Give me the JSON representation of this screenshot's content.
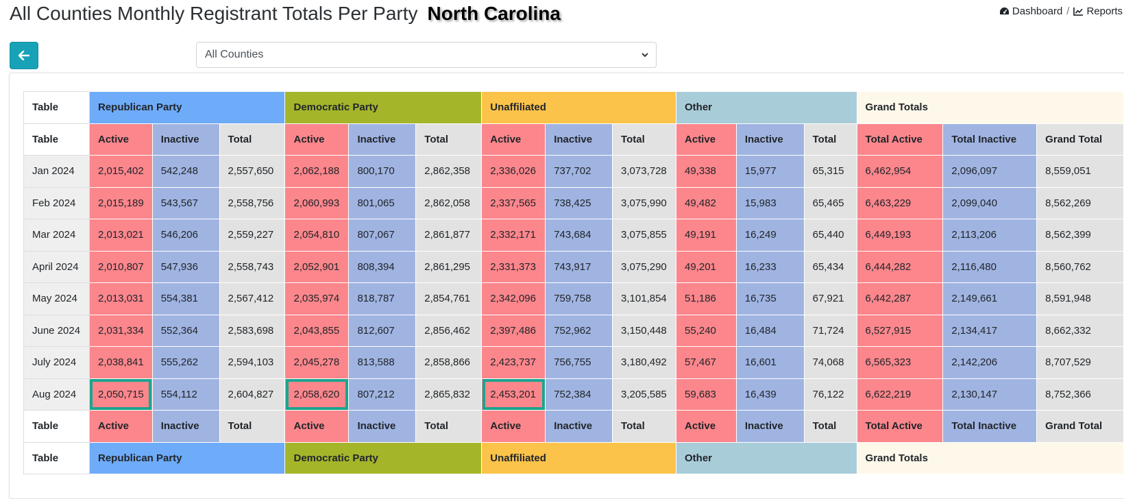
{
  "header": {
    "title": "All Counties Monthly Registrant Totals Per Party",
    "state": "North Carolina"
  },
  "breadcrumb": {
    "dashboard_label": "Dashboard",
    "separator": "/",
    "reports_label": "Reports"
  },
  "controls": {
    "back_icon": "arrow-left-icon",
    "county_selected": "All Counties"
  },
  "colors": {
    "republican": "#6eabf9",
    "democratic": "#a5b52a",
    "unaffiliated": "#fcc34a",
    "other": "#a9ccd9",
    "grand_totals": "#fef8ea",
    "active": "#fb868c",
    "inactive": "#a0b4e2",
    "total": "#e2e2e2",
    "highlight": "#1aa58f",
    "back_button": "#17a2b8"
  },
  "table": {
    "corner_label": "Table",
    "groups": [
      "Republican Party",
      "Democratic Party",
      "Unaffiliated",
      "Other",
      "Grand Totals"
    ],
    "columns": [
      "Active",
      "Inactive",
      "Total",
      "Active",
      "Inactive",
      "Total",
      "Active",
      "Inactive",
      "Total",
      "Active",
      "Inactive",
      "Total",
      "Total Active",
      "Total Inactive",
      "Grand Total"
    ],
    "rows": [
      {
        "month": "Jan 2024",
        "values": [
          "2,015,402",
          "542,248",
          "2,557,650",
          "2,062,188",
          "800,170",
          "2,862,358",
          "2,336,026",
          "737,702",
          "3,073,728",
          "49,338",
          "15,977",
          "65,315",
          "6,462,954",
          "2,096,097",
          "8,559,051"
        ]
      },
      {
        "month": "Feb 2024",
        "values": [
          "2,015,189",
          "543,567",
          "2,558,756",
          "2,060,993",
          "801,065",
          "2,862,058",
          "2,337,565",
          "738,425",
          "3,075,990",
          "49,482",
          "15,983",
          "65,465",
          "6,463,229",
          "2,099,040",
          "8,562,269"
        ]
      },
      {
        "month": "Mar 2024",
        "values": [
          "2,013,021",
          "546,206",
          "2,559,227",
          "2,054,810",
          "807,067",
          "2,861,877",
          "2,332,171",
          "743,684",
          "3,075,855",
          "49,191",
          "16,249",
          "65,440",
          "6,449,193",
          "2,113,206",
          "8,562,399"
        ]
      },
      {
        "month": "April 2024",
        "values": [
          "2,010,807",
          "547,936",
          "2,558,743",
          "2,052,901",
          "808,394",
          "2,861,295",
          "2,331,373",
          "743,917",
          "3,075,290",
          "49,201",
          "16,233",
          "65,434",
          "6,444,282",
          "2,116,480",
          "8,560,762"
        ]
      },
      {
        "month": "May 2024",
        "values": [
          "2,013,031",
          "554,381",
          "2,567,412",
          "2,035,974",
          "818,787",
          "2,854,761",
          "2,342,096",
          "759,758",
          "3,101,854",
          "51,186",
          "16,735",
          "67,921",
          "6,442,287",
          "2,149,661",
          "8,591,948"
        ]
      },
      {
        "month": "June 2024",
        "values": [
          "2,031,334",
          "552,364",
          "2,583,698",
          "2,043,855",
          "812,607",
          "2,856,462",
          "2,397,486",
          "752,962",
          "3,150,448",
          "55,240",
          "16,484",
          "71,724",
          "6,527,915",
          "2,134,417",
          "8,662,332"
        ]
      },
      {
        "month": "July 2024",
        "values": [
          "2,038,841",
          "555,262",
          "2,594,103",
          "2,045,278",
          "813,588",
          "2,858,866",
          "2,423,737",
          "756,755",
          "3,180,492",
          "57,467",
          "16,601",
          "74,068",
          "6,565,323",
          "2,142,206",
          "8,707,529"
        ]
      },
      {
        "month": "Aug 2024",
        "values": [
          "2,050,715",
          "554,112",
          "2,604,827",
          "2,058,620",
          "807,212",
          "2,865,832",
          "2,453,201",
          "752,384",
          "3,205,585",
          "59,683",
          "16,439",
          "76,122",
          "6,622,219",
          "2,130,147",
          "8,752,366"
        ]
      }
    ]
  }
}
